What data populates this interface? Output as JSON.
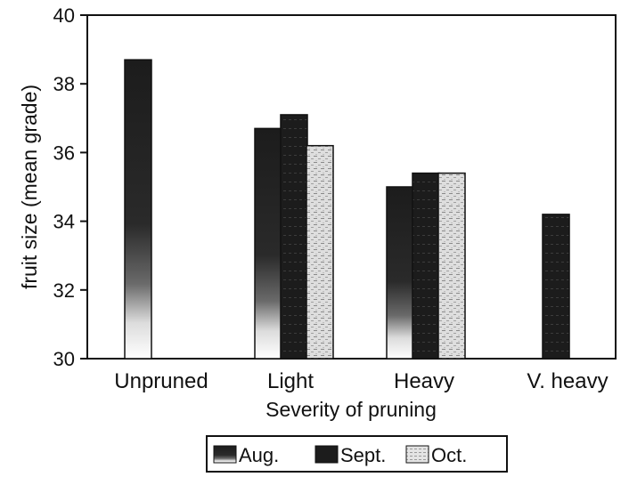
{
  "chart_data": {
    "type": "bar",
    "title": "",
    "xlabel": "Severity of pruning",
    "ylabel": "fruit size (mean grade)",
    "ylim": [
      30,
      40
    ],
    "yticks": [
      "30",
      "32",
      "34",
      "36",
      "38",
      "40"
    ],
    "categories": [
      "Unpruned",
      "Light",
      "Heavy",
      "V. heavy"
    ],
    "series": [
      {
        "name": "Aug.",
        "values": [
          38.7,
          36.7,
          35.0,
          null
        ],
        "color": "#1a1a1a",
        "fill": "gradient-aug"
      },
      {
        "name": "Sept.",
        "values": [
          null,
          37.1,
          35.4,
          34.2
        ],
        "color": "#1a1a1a",
        "fill": "solid-sept"
      },
      {
        "name": "Oct.",
        "values": [
          null,
          36.2,
          35.4,
          null
        ],
        "color": "#d8d8d8",
        "fill": "speckle-oct"
      }
    ],
    "grid": false,
    "legend": {
      "placement": "bottom-center",
      "entries": [
        "Aug.",
        "Sept.",
        "Oct."
      ]
    }
  }
}
